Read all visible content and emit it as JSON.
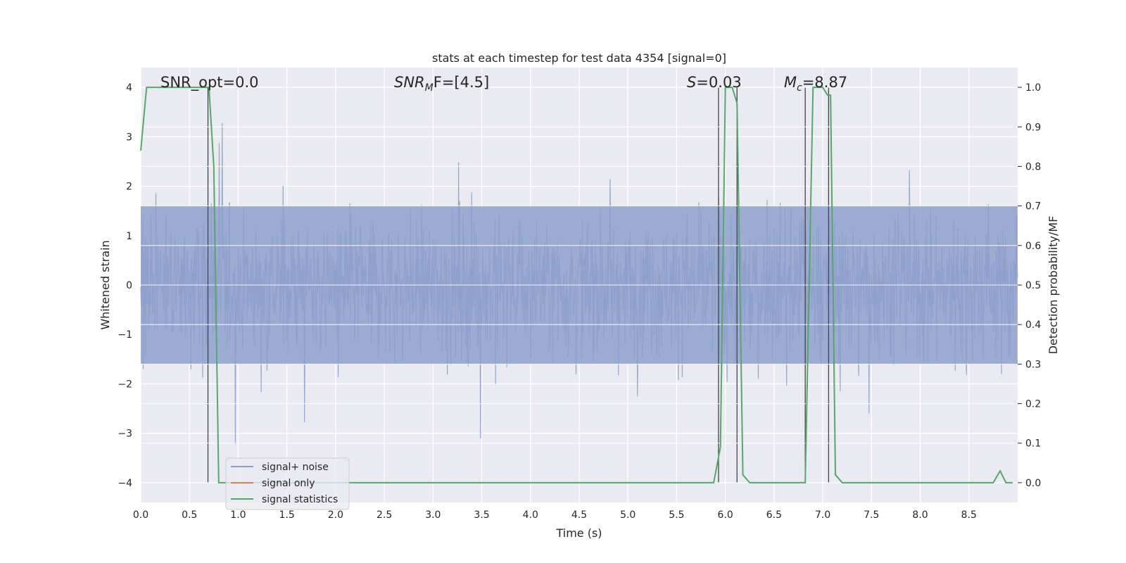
{
  "chart_data": {
    "type": "line",
    "title": "stats at each timestep for test data 4354 [signal=0]",
    "xlabel": "Time (s)",
    "ylabel": "Whitened strain",
    "y2label": "Detection probability/MF",
    "xlim": [
      0.0,
      9.0
    ],
    "ylim": [
      -4.4,
      4.4
    ],
    "y2lim": [
      -0.05,
      1.05
    ],
    "xticks": [
      "0.0",
      "0.5",
      "1.0",
      "1.5",
      "2.0",
      "2.5",
      "3.0",
      "3.5",
      "4.0",
      "4.5",
      "5.0",
      "5.5",
      "6.0",
      "6.5",
      "7.0",
      "7.5",
      "8.0",
      "8.5"
    ],
    "yticks": [
      "4",
      "3",
      "2",
      "1",
      "0",
      "−1",
      "−2",
      "−3",
      "−4"
    ],
    "y2ticks": [
      "1.0",
      "0.9",
      "0.8",
      "0.7",
      "0.6",
      "0.5",
      "0.4",
      "0.3",
      "0.2",
      "0.1",
      "0.0"
    ],
    "annotations": {
      "snr_opt": "SNR_opt=0.0",
      "snr_mf_pre": "SNR",
      "snr_mf_sub": "M",
      "snr_mf_post": "F=[4.5]",
      "s_pre": "S",
      "s_post": "=0.03",
      "mc_pre": "M",
      "mc_sub": "c",
      "mc_post": "=8.87"
    },
    "vertical_lines_x": [
      0.69,
      5.93,
      6.12,
      6.82,
      7.06
    ],
    "legend": {
      "placement": "lower-left",
      "entries": [
        {
          "label": "signal+ noise",
          "color": "#8da0cb"
        },
        {
          "label": "signal only",
          "color": "#dd8452"
        },
        {
          "label": "signal statistics",
          "color": "#55a868"
        }
      ]
    },
    "series": [
      {
        "name": "signal+ noise",
        "color": "#8da0cb",
        "description_range": [
          -3.6,
          4.0
        ]
      },
      {
        "name": "signal only",
        "color": "#dd8452",
        "values": []
      },
      {
        "name": "signal statistics",
        "color": "#55a868",
        "axis": "right",
        "x": [
          0.0,
          0.06,
          0.1,
          0.2,
          0.3,
          0.4,
          0.5,
          0.6,
          0.68,
          0.7,
          0.75,
          0.8,
          0.85,
          1.0,
          2.0,
          3.0,
          4.0,
          5.0,
          5.5,
          5.88,
          5.95,
          6.0,
          6.07,
          6.12,
          6.18,
          6.25,
          6.4,
          6.6,
          6.8,
          6.82,
          6.9,
          7.0,
          7.05,
          7.08,
          7.13,
          7.2,
          7.5,
          8.0,
          8.5,
          8.75,
          8.82,
          8.88,
          8.95
        ],
        "values": [
          0.84,
          1.0,
          1.0,
          1.0,
          1.0,
          1.0,
          1.0,
          1.0,
          1.0,
          1.0,
          0.8,
          0.0,
          0.0,
          0.0,
          0.0,
          0.0,
          0.0,
          0.0,
          0.0,
          0.0,
          0.09,
          1.0,
          1.0,
          0.96,
          0.02,
          0.0,
          0.0,
          0.0,
          0.0,
          0.0,
          1.0,
          1.0,
          0.98,
          0.98,
          0.02,
          0.0,
          0.0,
          0.0,
          0.0,
          0.0,
          0.03,
          0.0,
          0.0
        ]
      }
    ]
  }
}
